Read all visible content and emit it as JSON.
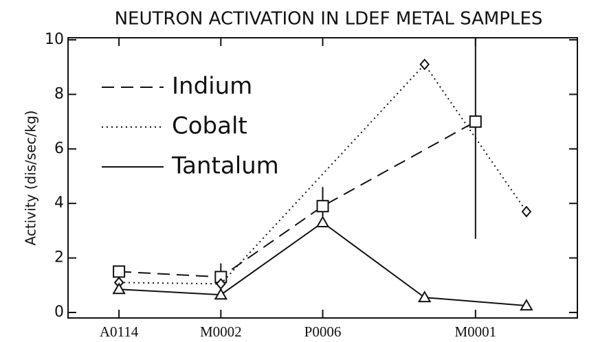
{
  "chart_data": {
    "type": "line",
    "title": "NEUTRON ACTIVATION IN LDEF METAL SAMPLES",
    "ylabel": "Activity (dis/sec/kg)",
    "xlim": [
      0.5,
      5.5
    ],
    "xticks": [
      {
        "value": 1,
        "label": "A0114"
      },
      {
        "value": 2,
        "label": "M0002"
      },
      {
        "value": 3,
        "label": "P0006"
      },
      {
        "value": 4.5,
        "label": "M0001"
      }
    ],
    "ylim": [
      0,
      10
    ],
    "yticks": [
      0,
      2,
      4,
      6,
      8,
      10
    ],
    "legend": "upper left",
    "series": [
      {
        "name": "Indium",
        "color": "#111111",
        "dash": "dashed",
        "marker": "square",
        "x": [
          1,
          2,
          3,
          4.5
        ],
        "values": [
          1.5,
          1.3,
          3.9,
          7.0
        ],
        "errors": [
          null,
          0.5,
          0.7,
          4.3
        ]
      },
      {
        "name": "Cobalt",
        "color": "#111111",
        "dash": "dotted",
        "marker": "diamond",
        "x": [
          1,
          2,
          4,
          5
        ],
        "values": [
          1.1,
          1.05,
          9.1,
          3.7
        ]
      },
      {
        "name": "Tantalum",
        "color": "#111111",
        "dash": "solid",
        "marker": "triangle",
        "x": [
          1,
          2,
          3,
          4,
          5
        ],
        "values": [
          0.85,
          0.65,
          3.3,
          0.55,
          0.25
        ]
      }
    ]
  }
}
